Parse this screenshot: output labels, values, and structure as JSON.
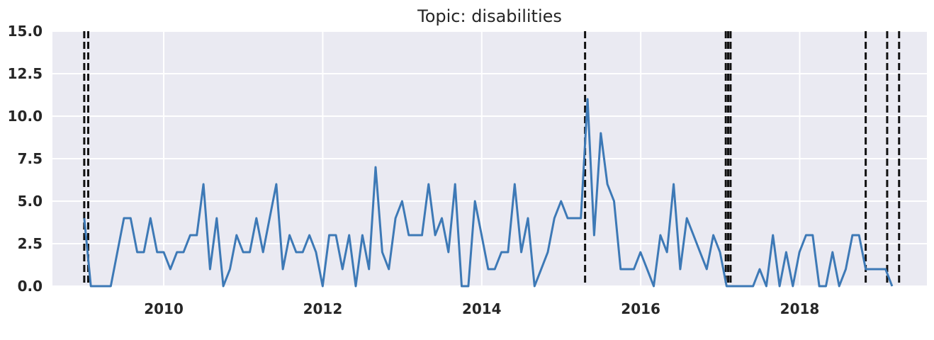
{
  "chart_data": {
    "type": "line",
    "title": "Topic: disabilities",
    "xlabel": "",
    "ylabel": "",
    "xlim": [
      2008.6,
      2019.6
    ],
    "ylim": [
      0,
      15
    ],
    "grid": true,
    "x_ticks": [
      2010,
      2012,
      2014,
      2016,
      2018
    ],
    "x_tick_labels": [
      "2010",
      "2012",
      "2014",
      "2016",
      "2018"
    ],
    "y_ticks": [
      0,
      2.5,
      5,
      7.5,
      10,
      12.5,
      15
    ],
    "y_tick_labels": [
      "0.0",
      "2.5",
      "5.0",
      "7.5",
      "10.0",
      "12.5",
      "15.0"
    ],
    "colors": {
      "line": "#3d79b6",
      "vlines": "#111111",
      "background": "#eaeaf2",
      "grid": "#ffffff"
    },
    "series": [
      {
        "x_start": 2009.0,
        "x_step": 0.0833,
        "values": [
          4,
          0,
          0,
          0,
          0,
          2,
          4,
          4,
          2,
          2,
          4,
          2,
          2,
          1,
          2,
          2,
          3,
          3,
          6,
          1,
          4,
          0,
          1,
          3,
          2,
          2,
          4,
          2,
          4,
          6,
          1,
          3,
          2,
          2,
          3,
          2,
          0,
          3,
          3,
          1,
          3,
          0,
          3,
          1,
          7,
          2,
          1,
          4,
          5,
          3,
          3,
          3,
          6,
          3,
          4,
          2,
          6,
          0,
          0,
          5,
          3,
          1,
          1,
          2,
          2,
          6,
          2,
          4,
          0,
          1,
          2,
          4,
          5,
          4,
          4,
          4,
          11,
          3,
          9,
          6,
          5,
          1,
          1,
          1,
          2,
          1,
          0,
          3,
          2,
          6,
          1,
          4,
          3,
          2,
          1,
          3,
          2,
          0,
          0,
          0,
          0,
          0,
          1,
          0,
          3,
          0,
          2,
          0,
          2,
          3,
          3,
          0,
          0,
          2,
          0,
          1,
          3,
          3,
          1,
          1,
          1,
          1,
          0
        ]
      }
    ],
    "vertical_lines": [
      2009.0,
      2009.05,
      2015.3,
      2017.07,
      2017.1,
      2017.13,
      2018.83,
      2019.1,
      2019.25
    ]
  }
}
